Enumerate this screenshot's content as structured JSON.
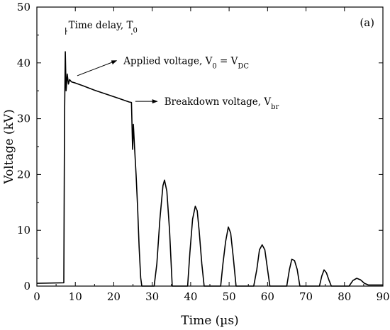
{
  "chart_data": {
    "type": "line",
    "title": "",
    "panel_label": "(a)",
    "xlabel": "Time (µs)",
    "ylabel": "Voltage (kV)",
    "xlim": [
      0,
      90
    ],
    "ylim": [
      0,
      50
    ],
    "x_ticks": [
      0,
      10,
      20,
      30,
      40,
      50,
      60,
      70,
      80,
      90
    ],
    "y_ticks": [
      0,
      10,
      20,
      30,
      40,
      50
    ],
    "grid": false,
    "line_color": "#000000",
    "series": [
      {
        "x": [
          0,
          7.0,
          7.2,
          7.4,
          7.6,
          7.9,
          8.2,
          8.5,
          9.0,
          10,
          12,
          15,
          18,
          21,
          24,
          24.6,
          24.9,
          25.1,
          25.4,
          25.8,
          26.2,
          26.6,
          27.0,
          27.3,
          30.5,
          31.2,
          32.0,
          32.8,
          33.2,
          33.8,
          34.5,
          35.2,
          39.2,
          39.8,
          40.5,
          41.2,
          41.7,
          42.2,
          42.9,
          43.5,
          47.8,
          48.4,
          49.1,
          49.8,
          50.4,
          51.1,
          51.8,
          56.4,
          57.2,
          57.9,
          58.6,
          59.3,
          60.0,
          60.6,
          65.0,
          65.7,
          66.3,
          67.0,
          67.7,
          68.4,
          73.5,
          74.1,
          74.7,
          75.3,
          76.0,
          76.6,
          81.2,
          82.2,
          83.2,
          84.2,
          85.2,
          86.2,
          90
        ],
        "y": [
          0.5,
          0.6,
          30,
          42,
          35,
          38,
          36.2,
          37,
          36.6,
          36.4,
          35.9,
          35.1,
          34.4,
          33.7,
          33.0,
          32.9,
          24.5,
          29,
          25,
          20,
          14,
          7,
          1.5,
          0,
          0,
          4,
          12,
          18,
          19,
          17,
          10,
          0,
          0,
          6,
          12,
          14.3,
          13.5,
          10,
          4,
          0,
          0,
          4,
          8,
          10.6,
          9.5,
          5,
          0,
          0,
          3,
          6.5,
          7.4,
          6.5,
          3,
          0,
          0,
          3,
          4.8,
          4.6,
          3,
          0,
          0,
          1.8,
          2.9,
          2.4,
          1,
          0,
          0,
          1,
          1.4,
          1.1,
          0.5,
          0.2,
          0.2
        ]
      }
    ],
    "annotations": [
      {
        "id": "time-delay",
        "text": "Time delay, T",
        "sub": "0",
        "suffix": "",
        "span_x": [
          7.5,
          24.7
        ],
        "y": 45.7
      },
      {
        "id": "applied",
        "text": "Applied  voltage, V",
        "sub": "0",
        "suffix": " = V",
        "sub2": "DC",
        "tail": [
          10.5,
          37.7
        ],
        "head": [
          20.7,
          40.4
        ]
      },
      {
        "id": "breakdown",
        "text": "Breakdown voltage, V",
        "sub": "br",
        "suffix": "",
        "tail": [
          25.6,
          33.1
        ],
        "head": [
          31.3,
          33.1
        ]
      }
    ]
  }
}
